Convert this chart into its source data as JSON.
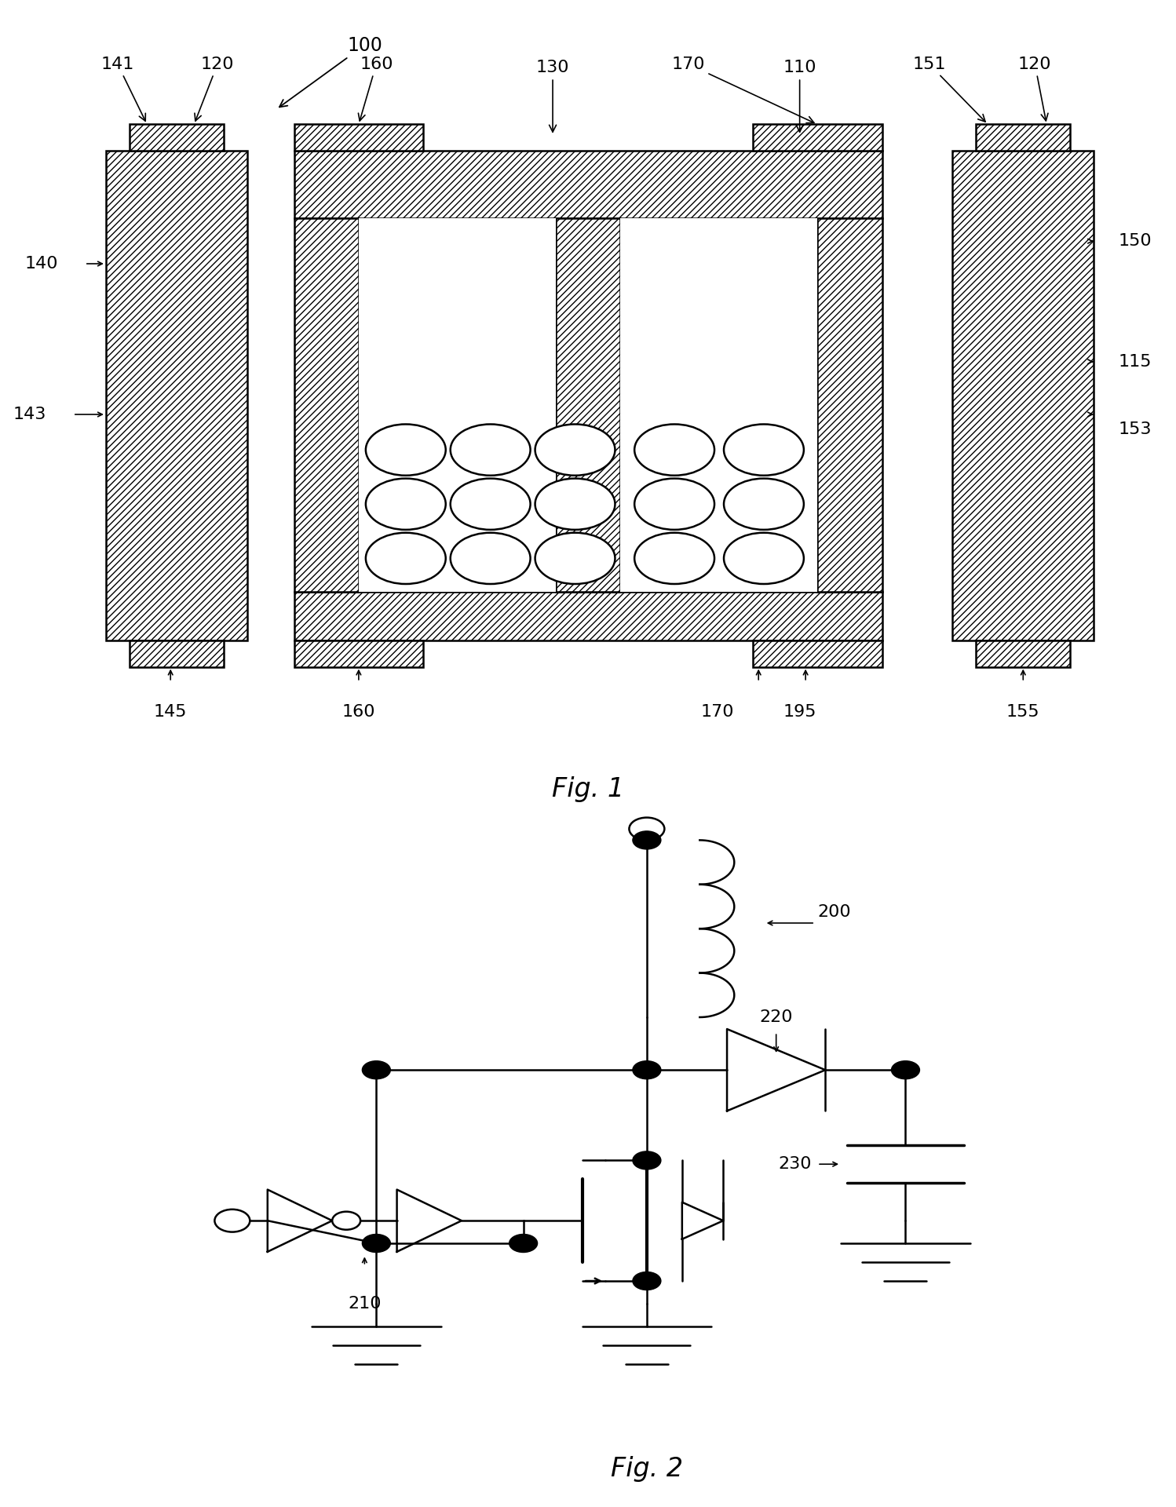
{
  "background": "#ffffff",
  "fig1_caption": "Fig. 1",
  "fig2_caption": "Fig. 2",
  "hatch": "////",
  "lw_main": 1.8,
  "fs_label": 16,
  "fs_caption": 20
}
